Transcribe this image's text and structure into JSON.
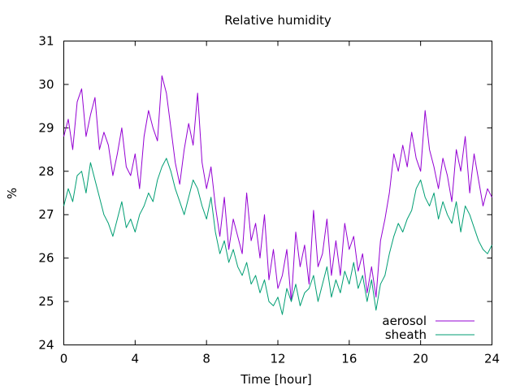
{
  "chart_data": {
    "type": "line",
    "title": "Relative humidity",
    "xlabel": "Time [hour]",
    "ylabel": "%",
    "xlim": [
      0,
      24
    ],
    "ylim": [
      24,
      31
    ],
    "xticks": [
      0,
      4,
      8,
      12,
      16,
      20,
      24
    ],
    "yticks": [
      24,
      25,
      26,
      27,
      28,
      29,
      30,
      31
    ],
    "grid": false,
    "legend_position": "bottom-right",
    "series": [
      {
        "name": "aerosol",
        "color": "#9400d3",
        "x": [
          0,
          0.25,
          0.5,
          0.75,
          1,
          1.25,
          1.5,
          1.75,
          2,
          2.25,
          2.5,
          2.75,
          3,
          3.25,
          3.5,
          3.75,
          4,
          4.25,
          4.5,
          4.75,
          5,
          5.25,
          5.5,
          5.75,
          6,
          6.25,
          6.5,
          6.75,
          7,
          7.25,
          7.5,
          7.75,
          8,
          8.25,
          8.5,
          8.75,
          9,
          9.25,
          9.5,
          9.75,
          10,
          10.25,
          10.5,
          10.75,
          11,
          11.25,
          11.5,
          11.75,
          12,
          12.25,
          12.5,
          12.75,
          13,
          13.25,
          13.5,
          13.75,
          14,
          14.25,
          14.5,
          14.75,
          15,
          15.25,
          15.5,
          15.75,
          16,
          16.25,
          16.5,
          16.75,
          17,
          17.25,
          17.5,
          17.75,
          18,
          18.25,
          18.5,
          18.75,
          19,
          19.25,
          19.5,
          19.75,
          20,
          20.25,
          20.5,
          20.75,
          21,
          21.25,
          21.5,
          21.75,
          22,
          22.25,
          22.5,
          22.75,
          23,
          23.25,
          23.5,
          23.75,
          24
        ],
        "values": [
          28.8,
          29.2,
          28.5,
          29.6,
          29.9,
          28.8,
          29.3,
          29.7,
          28.5,
          28.9,
          28.6,
          27.9,
          28.4,
          29.0,
          28.1,
          27.9,
          28.4,
          27.6,
          28.8,
          29.4,
          29.0,
          28.7,
          30.2,
          29.8,
          29.0,
          28.2,
          27.7,
          28.5,
          29.1,
          28.6,
          29.8,
          28.2,
          27.6,
          28.1,
          27.2,
          26.5,
          27.4,
          26.2,
          26.9,
          26.5,
          26.1,
          27.5,
          26.4,
          26.8,
          26.0,
          27.0,
          25.5,
          26.2,
          25.3,
          25.6,
          26.2,
          25.0,
          26.6,
          25.8,
          26.3,
          25.4,
          27.1,
          25.8,
          26.1,
          26.9,
          25.6,
          26.4,
          25.6,
          26.8,
          26.2,
          26.5,
          25.7,
          26.1,
          25.2,
          25.8,
          25.1,
          26.4,
          26.9,
          27.5,
          28.4,
          28.0,
          28.6,
          28.1,
          28.9,
          28.3,
          28.0,
          29.4,
          28.5,
          28.1,
          27.6,
          28.3,
          27.9,
          27.3,
          28.5,
          28.0,
          28.8,
          27.5,
          28.4,
          27.8,
          27.2,
          27.6,
          27.4
        ]
      },
      {
        "name": "sheath",
        "color": "#009e73",
        "x": [
          0,
          0.25,
          0.5,
          0.75,
          1,
          1.25,
          1.5,
          1.75,
          2,
          2.25,
          2.5,
          2.75,
          3,
          3.25,
          3.5,
          3.75,
          4,
          4.25,
          4.5,
          4.75,
          5,
          5.25,
          5.5,
          5.75,
          6,
          6.25,
          6.5,
          6.75,
          7,
          7.25,
          7.5,
          7.75,
          8,
          8.25,
          8.5,
          8.75,
          9,
          9.25,
          9.5,
          9.75,
          10,
          10.25,
          10.5,
          10.75,
          11,
          11.25,
          11.5,
          11.75,
          12,
          12.25,
          12.5,
          12.75,
          13,
          13.25,
          13.5,
          13.75,
          14,
          14.25,
          14.5,
          14.75,
          15,
          15.25,
          15.5,
          15.75,
          16,
          16.25,
          16.5,
          16.75,
          17,
          17.25,
          17.5,
          17.75,
          18,
          18.25,
          18.5,
          18.75,
          19,
          19.25,
          19.5,
          19.75,
          20,
          20.25,
          20.5,
          20.75,
          21,
          21.25,
          21.5,
          21.75,
          22,
          22.25,
          22.5,
          22.75,
          23,
          23.25,
          23.5,
          23.75,
          24
        ],
        "values": [
          27.2,
          27.6,
          27.3,
          27.9,
          28.0,
          27.5,
          28.2,
          27.8,
          27.4,
          27.0,
          26.8,
          26.5,
          26.9,
          27.3,
          26.7,
          26.9,
          26.6,
          27.0,
          27.2,
          27.5,
          27.3,
          27.8,
          28.1,
          28.3,
          28.0,
          27.6,
          27.3,
          27.0,
          27.4,
          27.8,
          27.6,
          27.2,
          26.9,
          27.4,
          26.6,
          26.1,
          26.4,
          25.9,
          26.2,
          25.8,
          25.6,
          25.9,
          25.4,
          25.6,
          25.2,
          25.5,
          25.0,
          24.9,
          25.1,
          24.7,
          25.3,
          25.0,
          25.4,
          24.9,
          25.2,
          25.3,
          25.6,
          25.0,
          25.4,
          25.8,
          25.1,
          25.5,
          25.2,
          25.7,
          25.4,
          25.9,
          25.3,
          25.6,
          25.0,
          25.5,
          24.8,
          25.4,
          25.6,
          26.1,
          26.5,
          26.8,
          26.6,
          26.9,
          27.1,
          27.6,
          27.8,
          27.4,
          27.2,
          27.5,
          26.9,
          27.3,
          27.0,
          26.8,
          27.3,
          26.6,
          27.2,
          27.0,
          26.7,
          26.4,
          26.2,
          26.1,
          26.3
        ]
      }
    ]
  }
}
